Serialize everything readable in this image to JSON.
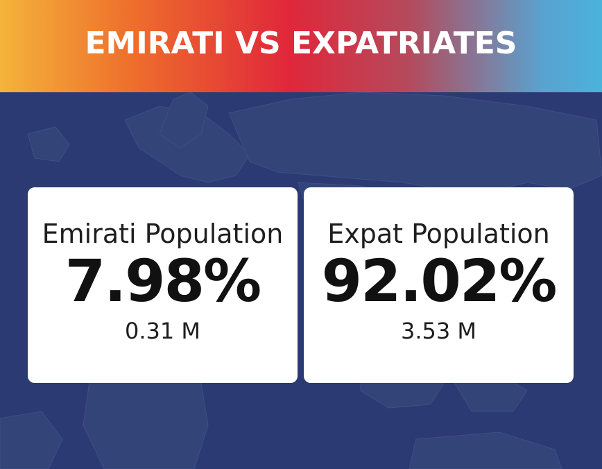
{
  "header": {
    "title": "EMIRATI VS EXPATRIATES"
  },
  "background": {
    "icon": "world-map-icon",
    "color": "#2b3a72"
  },
  "cards": [
    {
      "label": "Emirati Population",
      "percent": "7.98%",
      "count": "0.31 M"
    },
    {
      "label": "Expat Population",
      "percent": "92.02%",
      "count": "3.53 M"
    }
  ]
}
